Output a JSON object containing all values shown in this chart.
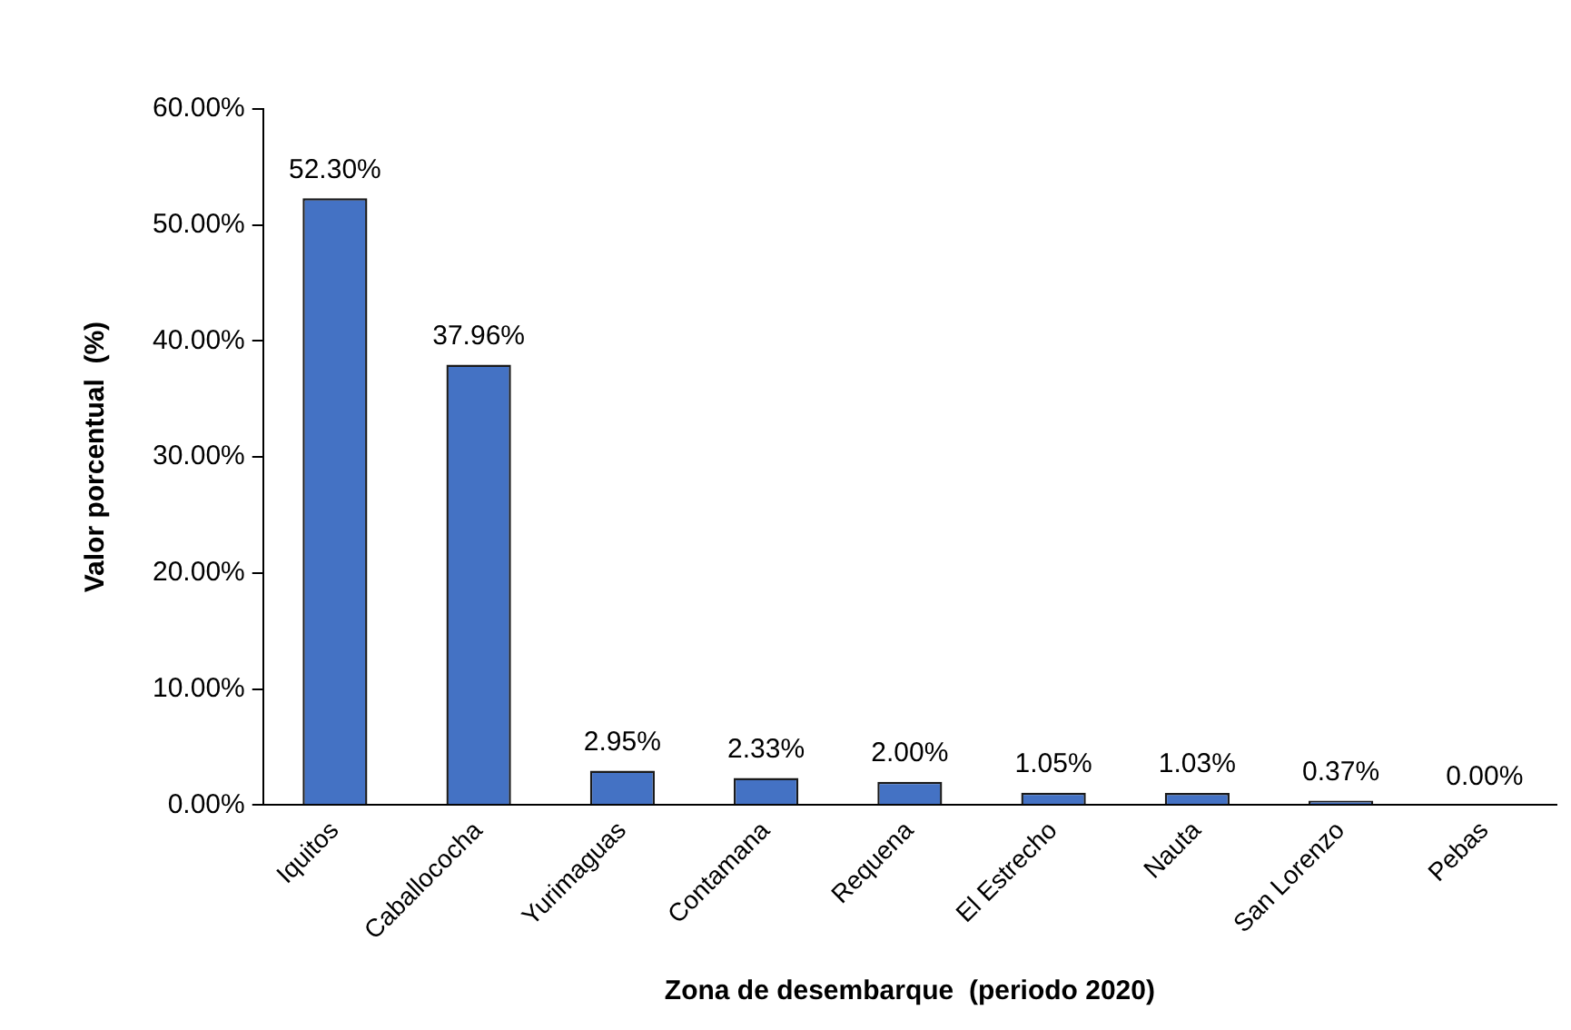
{
  "chart_data": {
    "type": "bar",
    "xlabel": "Zona de desembarque  (periodo 2020)",
    "ylabel": "Valor porcentual  (%)",
    "categories": [
      "Iquitos",
      "Caballococha",
      "Yurimaguas",
      "Contamana",
      "Requena",
      "El Estrecho",
      "Nauta",
      "San Lorenzo",
      "Pebas"
    ],
    "values": [
      52.3,
      37.96,
      2.95,
      2.33,
      2.0,
      1.05,
      1.03,
      0.37,
      0.0
    ],
    "value_labels": [
      "52.30%",
      "37.96%",
      "2.95%",
      "2.33%",
      "2.00%",
      "1.05%",
      "1.03%",
      "0.37%",
      "0.00%"
    ],
    "color": "#4472c4",
    "ylim": [
      0,
      60
    ],
    "yticks": [
      {
        "value": 0,
        "label": "0.00%"
      },
      {
        "value": 10,
        "label": "10.00%"
      },
      {
        "value": 20,
        "label": "20.00%"
      },
      {
        "value": 30,
        "label": "30.00%"
      },
      {
        "value": 40,
        "label": "40.00%"
      },
      {
        "value": 50,
        "label": "50.00%"
      },
      {
        "value": 60,
        "label": "60.00%"
      }
    ],
    "grid": false,
    "legend": false
  }
}
